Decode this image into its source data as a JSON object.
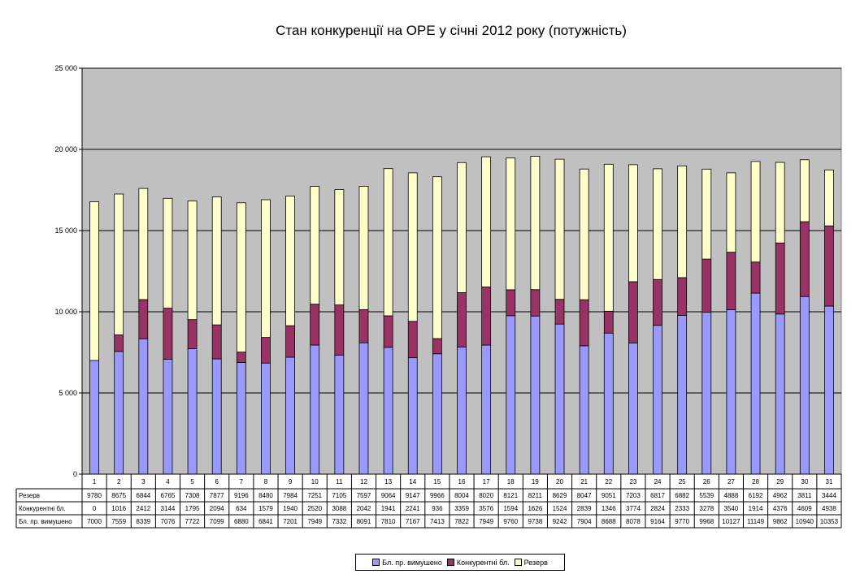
{
  "chart_data": {
    "type": "bar",
    "stacked": true,
    "title": "Стан конкуренції на ОРЕ  у січні 2012 року (потужність)",
    "xlabel": "",
    "ylabel": "",
    "ylim": [
      0,
      25000
    ],
    "yticks": [
      0,
      5000,
      10000,
      15000,
      20000,
      25000
    ],
    "ytick_labels": [
      "0",
      "5 000",
      "10 000",
      "15 000",
      "20 000",
      "25 000"
    ],
    "grid": true,
    "legend_position": "bottom",
    "plot_background": "#c0c0c0",
    "categories": [
      "1",
      "2",
      "3",
      "4",
      "5",
      "6",
      "7",
      "8",
      "9",
      "10",
      "11",
      "12",
      "13",
      "14",
      "15",
      "16",
      "17",
      "18",
      "19",
      "20",
      "21",
      "22",
      "23",
      "24",
      "25",
      "26",
      "27",
      "28",
      "29",
      "30",
      "31"
    ],
    "series": [
      {
        "name": "Бл. пр. вимушено",
        "color": "#9999ff",
        "values": [
          7000,
          7559,
          8339,
          7076,
          7722,
          7099,
          6880,
          6841,
          7201,
          7949,
          7332,
          8091,
          7810,
          7167,
          7413,
          7822,
          7949,
          9760,
          9738,
          9242,
          7904,
          8688,
          8078,
          9164,
          9770,
          9968,
          10127,
          11149,
          9862,
          10940,
          10353
        ]
      },
      {
        "name": "Конкурентні бл.",
        "color": "#993366",
        "values": [
          0,
          1016,
          2412,
          3144,
          1795,
          2094,
          634,
          1579,
          1940,
          2520,
          3088,
          2042,
          1941,
          2241,
          936,
          3359,
          3576,
          1594,
          1626,
          1524,
          2839,
          1346,
          3774,
          2824,
          2333,
          3278,
          3540,
          1914,
          4376,
          4609,
          4938
        ]
      },
      {
        "name": "Резерв",
        "color": "#ffffcc",
        "values": [
          9780,
          8675,
          6844,
          6765,
          7308,
          7877,
          9196,
          8480,
          7984,
          7251,
          7105,
          7597,
          9064,
          9147,
          9966,
          8004,
          8020,
          8121,
          8211,
          8629,
          8047,
          9051,
          7203,
          6817,
          6882,
          5539,
          4888,
          6192,
          4962,
          3811,
          3444
        ]
      }
    ],
    "table_rows": [
      "Резерв",
      "Конкурентні бл.",
      "Бл. пр. вимушено"
    ]
  }
}
